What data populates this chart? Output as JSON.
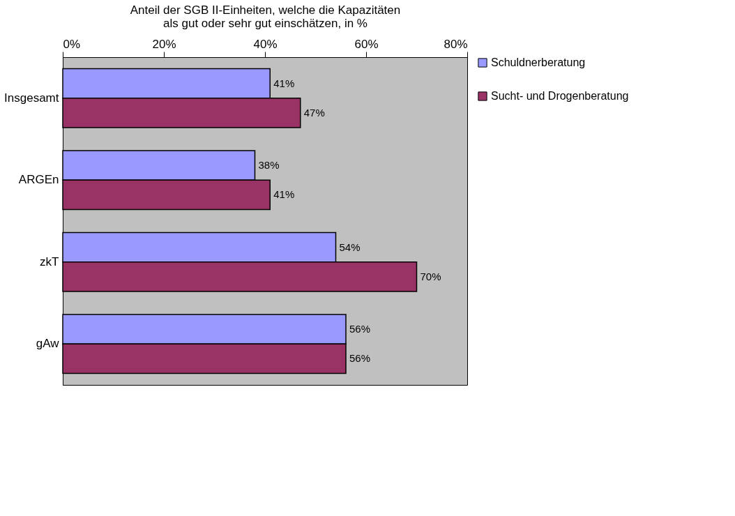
{
  "chart_data": {
    "type": "bar",
    "orientation": "horizontal",
    "xlabel": "Anteil der SGB II-Einheiten, welche die Kapazitäten\nals gut oder sehr gut einschätzen, in %",
    "categories": [
      "Insgesamt",
      "ARGEn",
      "zkT",
      "gAw"
    ],
    "series": [
      {
        "name": "Schuldnerberatung",
        "color": "#9999ff",
        "values": [
          41,
          38,
          54,
          56
        ],
        "value_labels": [
          "41%",
          "38%",
          "54%",
          "56%"
        ]
      },
      {
        "name": "Sucht- und Drogenberatung",
        "color": "#993366",
        "values": [
          47,
          41,
          70,
          56
        ],
        "value_labels": [
          "47%",
          "41%",
          "70%",
          "56%"
        ]
      }
    ],
    "xlim": [
      0,
      80
    ],
    "xticks": [
      {
        "value": 0,
        "label": "0%"
      },
      {
        "value": 20,
        "label": "20%"
      },
      {
        "value": 40,
        "label": "40%"
      },
      {
        "value": 60,
        "label": "60%"
      },
      {
        "value": 80,
        "label": "80%"
      }
    ],
    "grid": false,
    "legend": "right"
  }
}
